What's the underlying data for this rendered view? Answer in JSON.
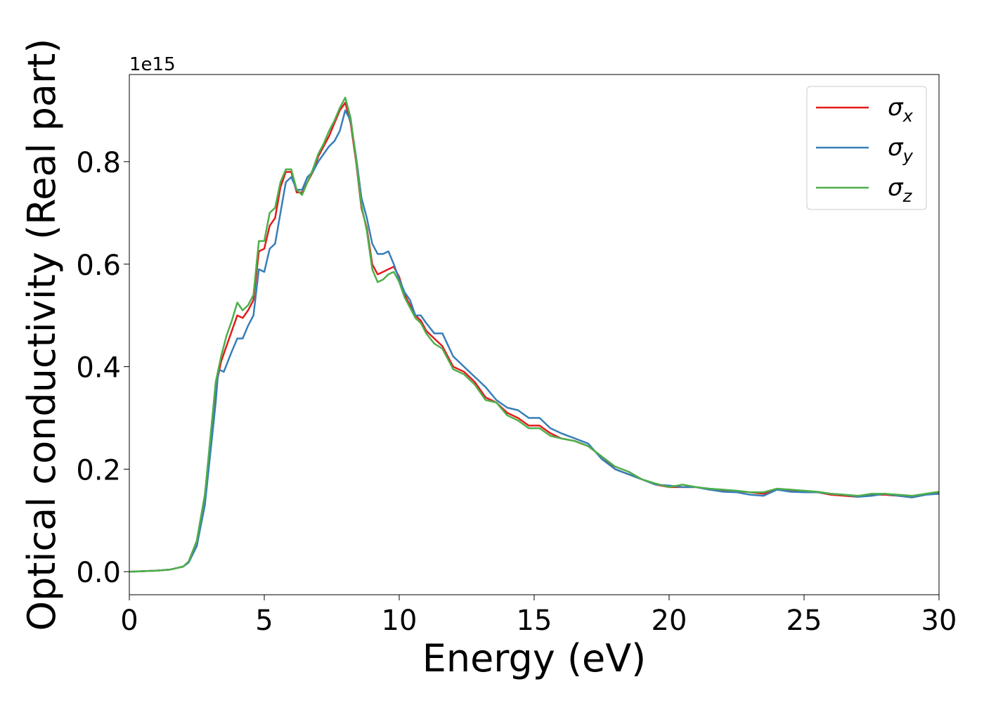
{
  "chart_data": {
    "type": "line",
    "title": "",
    "xlabel": "Energy (eV)",
    "ylabel": "Optical conductivity (Real part)",
    "offset_label": "1e15",
    "xlim": [
      0,
      30
    ],
    "ylim": [
      -0.045,
      0.97
    ],
    "xticks": [
      0,
      5,
      10,
      15,
      20,
      25,
      30
    ],
    "xtick_labels": [
      "0",
      "5",
      "10",
      "15",
      "20",
      "25",
      "30"
    ],
    "yticks": [
      0.0,
      0.2,
      0.4,
      0.6,
      0.8
    ],
    "ytick_labels": [
      "0.0",
      "0.2",
      "0.4",
      "0.6",
      "0.8"
    ],
    "grid": false,
    "legend_position": "top-right",
    "series": [
      {
        "name": "σx",
        "base": "σ",
        "sub": "x",
        "color": "#e41a1c",
        "x": [
          0,
          1,
          1.5,
          2,
          2.2,
          2.5,
          2.8,
          3.0,
          3.2,
          3.4,
          3.6,
          3.8,
          4.0,
          4.2,
          4.4,
          4.6,
          4.8,
          5.0,
          5.2,
          5.4,
          5.6,
          5.8,
          6.0,
          6.2,
          6.4,
          6.6,
          6.8,
          7.0,
          7.2,
          7.4,
          7.6,
          7.8,
          8.0,
          8.2,
          8.4,
          8.6,
          8.8,
          9.0,
          9.2,
          9.4,
          9.6,
          9.8,
          10.0,
          10.2,
          10.4,
          10.6,
          10.8,
          11.0,
          11.3,
          11.6,
          12.0,
          12.4,
          12.8,
          13.2,
          13.6,
          14.0,
          14.4,
          14.8,
          15.2,
          15.6,
          16.0,
          16.5,
          17.0,
          17.5,
          18.0,
          18.5,
          19.0,
          19.5,
          20.0,
          20.5,
          21.0,
          21.5,
          22.0,
          22.5,
          23.0,
          23.5,
          24.0,
          24.5,
          25.0,
          25.5,
          26.0,
          26.5,
          27.0,
          27.5,
          28.0,
          28.5,
          29.0,
          29.5,
          30.0
        ],
        "y": [
          0.0,
          0.002,
          0.004,
          0.01,
          0.02,
          0.06,
          0.15,
          0.25,
          0.36,
          0.41,
          0.44,
          0.47,
          0.5,
          0.495,
          0.51,
          0.53,
          0.625,
          0.63,
          0.675,
          0.69,
          0.75,
          0.78,
          0.78,
          0.74,
          0.74,
          0.76,
          0.78,
          0.81,
          0.83,
          0.85,
          0.875,
          0.9,
          0.915,
          0.875,
          0.8,
          0.71,
          0.67,
          0.6,
          0.58,
          0.585,
          0.59,
          0.595,
          0.575,
          0.54,
          0.52,
          0.5,
          0.49,
          0.47,
          0.455,
          0.44,
          0.4,
          0.39,
          0.37,
          0.34,
          0.33,
          0.31,
          0.3,
          0.285,
          0.285,
          0.27,
          0.26,
          0.255,
          0.245,
          0.225,
          0.2,
          0.19,
          0.18,
          0.17,
          0.165,
          0.165,
          0.165,
          0.16,
          0.158,
          0.157,
          0.155,
          0.152,
          0.16,
          0.158,
          0.157,
          0.155,
          0.15,
          0.148,
          0.146,
          0.15,
          0.15,
          0.148,
          0.145,
          0.15,
          0.155
        ]
      },
      {
        "name": "σy",
        "base": "σ",
        "sub": "y",
        "color": "#377eb8",
        "x": [
          0,
          1,
          1.5,
          2,
          2.2,
          2.5,
          2.8,
          3.0,
          3.2,
          3.3,
          3.5,
          3.8,
          4.0,
          4.2,
          4.4,
          4.6,
          4.8,
          5.0,
          5.2,
          5.4,
          5.6,
          5.8,
          6.0,
          6.2,
          6.4,
          6.6,
          6.8,
          7.0,
          7.2,
          7.4,
          7.6,
          7.8,
          8.0,
          8.2,
          8.4,
          8.6,
          8.8,
          9.0,
          9.2,
          9.4,
          9.6,
          9.8,
          10.0,
          10.2,
          10.4,
          10.6,
          10.8,
          11.0,
          11.3,
          11.6,
          12.0,
          12.4,
          12.8,
          13.2,
          13.6,
          14.0,
          14.4,
          14.8,
          15.2,
          15.6,
          16.0,
          16.5,
          17.0,
          17.5,
          18.0,
          18.5,
          19.0,
          19.5,
          20.0,
          20.5,
          21.0,
          21.5,
          22.0,
          22.5,
          23.0,
          23.5,
          24.0,
          24.5,
          25.0,
          25.5,
          26.0,
          26.5,
          27.0,
          27.5,
          28.0,
          28.5,
          29.0,
          29.5,
          30.0
        ],
        "y": [
          0.0,
          0.002,
          0.004,
          0.01,
          0.018,
          0.05,
          0.13,
          0.23,
          0.33,
          0.395,
          0.39,
          0.43,
          0.455,
          0.455,
          0.48,
          0.5,
          0.59,
          0.585,
          0.63,
          0.64,
          0.7,
          0.76,
          0.77,
          0.745,
          0.745,
          0.77,
          0.78,
          0.8,
          0.815,
          0.83,
          0.84,
          0.86,
          0.9,
          0.88,
          0.81,
          0.73,
          0.69,
          0.64,
          0.62,
          0.62,
          0.625,
          0.6,
          0.57,
          0.545,
          0.53,
          0.5,
          0.5,
          0.485,
          0.465,
          0.465,
          0.42,
          0.4,
          0.38,
          0.36,
          0.335,
          0.32,
          0.315,
          0.3,
          0.3,
          0.28,
          0.27,
          0.26,
          0.25,
          0.22,
          0.2,
          0.19,
          0.18,
          0.17,
          0.168,
          0.165,
          0.165,
          0.16,
          0.156,
          0.155,
          0.15,
          0.148,
          0.16,
          0.156,
          0.155,
          0.155,
          0.152,
          0.15,
          0.146,
          0.148,
          0.152,
          0.148,
          0.145,
          0.15,
          0.152
        ]
      },
      {
        "name": "σz",
        "base": "σ",
        "sub": "z",
        "color": "#4daf4a",
        "x": [
          0,
          1,
          1.5,
          2,
          2.2,
          2.5,
          2.8,
          3.0,
          3.2,
          3.4,
          3.6,
          3.8,
          4.0,
          4.2,
          4.4,
          4.6,
          4.8,
          5.0,
          5.2,
          5.4,
          5.6,
          5.8,
          6.0,
          6.2,
          6.4,
          6.6,
          6.8,
          7.0,
          7.2,
          7.4,
          7.6,
          7.8,
          8.0,
          8.2,
          8.4,
          8.6,
          8.8,
          9.0,
          9.2,
          9.4,
          9.6,
          9.8,
          10.0,
          10.2,
          10.4,
          10.6,
          10.8,
          11.0,
          11.3,
          11.6,
          12.0,
          12.4,
          12.8,
          13.2,
          13.6,
          14.0,
          14.4,
          14.8,
          15.2,
          15.6,
          16.0,
          16.5,
          17.0,
          17.5,
          18.0,
          18.5,
          19.0,
          19.5,
          20.0,
          20.5,
          21.0,
          21.5,
          22.0,
          22.5,
          23.0,
          23.5,
          24.0,
          24.5,
          25.0,
          25.5,
          26.0,
          26.5,
          27.0,
          27.5,
          28.0,
          28.5,
          29.0,
          29.5,
          30.0
        ],
        "y": [
          0.0,
          0.002,
          0.004,
          0.01,
          0.02,
          0.06,
          0.15,
          0.26,
          0.37,
          0.42,
          0.46,
          0.49,
          0.525,
          0.51,
          0.52,
          0.54,
          0.645,
          0.645,
          0.7,
          0.71,
          0.76,
          0.785,
          0.785,
          0.745,
          0.735,
          0.76,
          0.785,
          0.815,
          0.835,
          0.86,
          0.88,
          0.905,
          0.925,
          0.885,
          0.805,
          0.715,
          0.665,
          0.59,
          0.565,
          0.57,
          0.58,
          0.585,
          0.565,
          0.535,
          0.515,
          0.495,
          0.485,
          0.465,
          0.445,
          0.435,
          0.395,
          0.385,
          0.365,
          0.335,
          0.33,
          0.305,
          0.295,
          0.28,
          0.28,
          0.265,
          0.26,
          0.255,
          0.245,
          0.225,
          0.205,
          0.195,
          0.18,
          0.172,
          0.165,
          0.17,
          0.165,
          0.162,
          0.16,
          0.158,
          0.155,
          0.155,
          0.162,
          0.16,
          0.158,
          0.156,
          0.152,
          0.15,
          0.148,
          0.152,
          0.152,
          0.15,
          0.148,
          0.152,
          0.156
        ]
      }
    ]
  }
}
